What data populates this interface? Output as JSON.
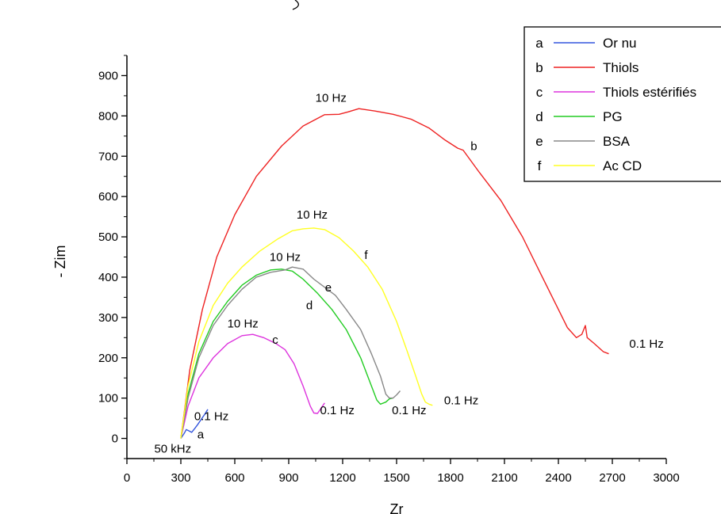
{
  "chart_data": {
    "type": "line",
    "title": "",
    "xlabel": "Zr",
    "ylabel": "- Zim",
    "xlim": [
      0,
      3000
    ],
    "ylim": [
      -50,
      950
    ],
    "x_ticks": [
      0,
      300,
      600,
      900,
      1200,
      1500,
      1800,
      2100,
      2400,
      2700,
      3000
    ],
    "y_ticks": [
      0,
      100,
      200,
      300,
      400,
      500,
      600,
      700,
      800,
      900
    ],
    "grid": false,
    "legend_position": "top-right",
    "series": [
      {
        "letter": "a",
        "name": "Or nu",
        "color": "#3355dd",
        "points": [
          [
            300,
            0
          ],
          [
            318,
            12
          ],
          [
            330,
            22
          ],
          [
            348,
            18
          ],
          [
            360,
            15
          ],
          [
            378,
            25
          ],
          [
            395,
            35
          ],
          [
            410,
            45
          ],
          [
            430,
            58
          ],
          [
            450,
            72
          ]
        ]
      },
      {
        "letter": "b",
        "name": "Thiols",
        "color": "#ee2222",
        "points": [
          [
            300,
            0
          ],
          [
            350,
            170
          ],
          [
            420,
            320
          ],
          [
            500,
            450
          ],
          [
            600,
            555
          ],
          [
            720,
            650
          ],
          [
            860,
            725
          ],
          [
            980,
            775
          ],
          [
            1100,
            803
          ],
          [
            1180,
            804
          ],
          [
            1230,
            810
          ],
          [
            1290,
            818
          ],
          [
            1380,
            812
          ],
          [
            1480,
            804
          ],
          [
            1580,
            792
          ],
          [
            1680,
            770
          ],
          [
            1770,
            740
          ],
          [
            1840,
            720
          ],
          [
            1870,
            715
          ],
          [
            1960,
            660
          ],
          [
            2080,
            590
          ],
          [
            2200,
            500
          ],
          [
            2300,
            410
          ],
          [
            2400,
            320
          ],
          [
            2450,
            275
          ],
          [
            2500,
            250
          ],
          [
            2530,
            258
          ],
          [
            2550,
            280
          ],
          [
            2560,
            250
          ],
          [
            2600,
            235
          ],
          [
            2650,
            215
          ],
          [
            2680,
            210
          ]
        ]
      },
      {
        "letter": "c",
        "name": "Thiols estérifiés",
        "color": "#dd33dd",
        "points": [
          [
            300,
            0
          ],
          [
            340,
            80
          ],
          [
            400,
            150
          ],
          [
            480,
            200
          ],
          [
            560,
            235
          ],
          [
            640,
            255
          ],
          [
            700,
            258
          ],
          [
            760,
            250
          ],
          [
            830,
            235
          ],
          [
            880,
            220
          ],
          [
            930,
            185
          ],
          [
            980,
            130
          ],
          [
            1020,
            80
          ],
          [
            1040,
            63
          ],
          [
            1060,
            62
          ],
          [
            1080,
            75
          ],
          [
            1100,
            88
          ]
        ]
      },
      {
        "letter": "d",
        "name": "PG",
        "color": "#22cc22",
        "points": [
          [
            300,
            0
          ],
          [
            340,
            110
          ],
          [
            400,
            210
          ],
          [
            480,
            290
          ],
          [
            560,
            340
          ],
          [
            640,
            380
          ],
          [
            720,
            405
          ],
          [
            800,
            418
          ],
          [
            860,
            420
          ],
          [
            920,
            415
          ],
          [
            980,
            395
          ],
          [
            1060,
            360
          ],
          [
            1140,
            320
          ],
          [
            1220,
            270
          ],
          [
            1300,
            200
          ],
          [
            1360,
            130
          ],
          [
            1390,
            95
          ],
          [
            1410,
            85
          ],
          [
            1440,
            90
          ],
          [
            1460,
            98
          ],
          [
            1480,
            100
          ]
        ]
      },
      {
        "letter": "e",
        "name": "BSA",
        "color": "#888888",
        "points": [
          [
            300,
            0
          ],
          [
            340,
            100
          ],
          [
            400,
            200
          ],
          [
            480,
            280
          ],
          [
            560,
            330
          ],
          [
            640,
            370
          ],
          [
            720,
            400
          ],
          [
            800,
            412
          ],
          [
            880,
            418
          ],
          [
            920,
            425
          ],
          [
            980,
            420
          ],
          [
            1040,
            395
          ],
          [
            1100,
            375
          ],
          [
            1160,
            355
          ],
          [
            1220,
            320
          ],
          [
            1300,
            270
          ],
          [
            1360,
            210
          ],
          [
            1410,
            155
          ],
          [
            1440,
            110
          ],
          [
            1460,
            100
          ],
          [
            1480,
            100
          ],
          [
            1500,
            108
          ],
          [
            1520,
            118
          ]
        ]
      },
      {
        "letter": "f",
        "name": "Ac CD",
        "color": "#ffff22",
        "points": [
          [
            300,
            0
          ],
          [
            340,
            130
          ],
          [
            400,
            240
          ],
          [
            480,
            330
          ],
          [
            560,
            385
          ],
          [
            640,
            425
          ],
          [
            740,
            465
          ],
          [
            840,
            495
          ],
          [
            920,
            515
          ],
          [
            980,
            520
          ],
          [
            1040,
            522
          ],
          [
            1100,
            518
          ],
          [
            1180,
            498
          ],
          [
            1260,
            465
          ],
          [
            1340,
            425
          ],
          [
            1420,
            370
          ],
          [
            1500,
            290
          ],
          [
            1560,
            215
          ],
          [
            1610,
            150
          ],
          [
            1640,
            110
          ],
          [
            1660,
            90
          ],
          [
            1680,
            85
          ],
          [
            1700,
            82
          ]
        ]
      }
    ],
    "annotations": [
      {
        "text": "10 Hz",
        "x": 1135,
        "y": 835
      },
      {
        "text": "b",
        "x": 1930,
        "y": 715
      },
      {
        "text": "0.1 Hz",
        "x": 2890,
        "y": 225
      },
      {
        "text": "10 Hz",
        "x": 1030,
        "y": 545
      },
      {
        "text": "f",
        "x": 1330,
        "y": 445
      },
      {
        "text": "10 Hz",
        "x": 880,
        "y": 440
      },
      {
        "text": "e",
        "x": 1120,
        "y": 365
      },
      {
        "text": "d",
        "x": 1015,
        "y": 320
      },
      {
        "text": "10 Hz",
        "x": 645,
        "y": 275
      },
      {
        "text": "c",
        "x": 825,
        "y": 235
      },
      {
        "text": "0.1 Hz",
        "x": 1170,
        "y": 60
      },
      {
        "text": "0.1 Hz",
        "x": 1570,
        "y": 60
      },
      {
        "text": "0.1 Hz",
        "x": 1860,
        "y": 85
      },
      {
        "text": "0.1 Hz",
        "x": 470,
        "y": 45
      },
      {
        "text": "a",
        "x": 410,
        "y": 0
      },
      {
        "text": "50 kHz",
        "x": 255,
        "y": -35
      }
    ]
  }
}
